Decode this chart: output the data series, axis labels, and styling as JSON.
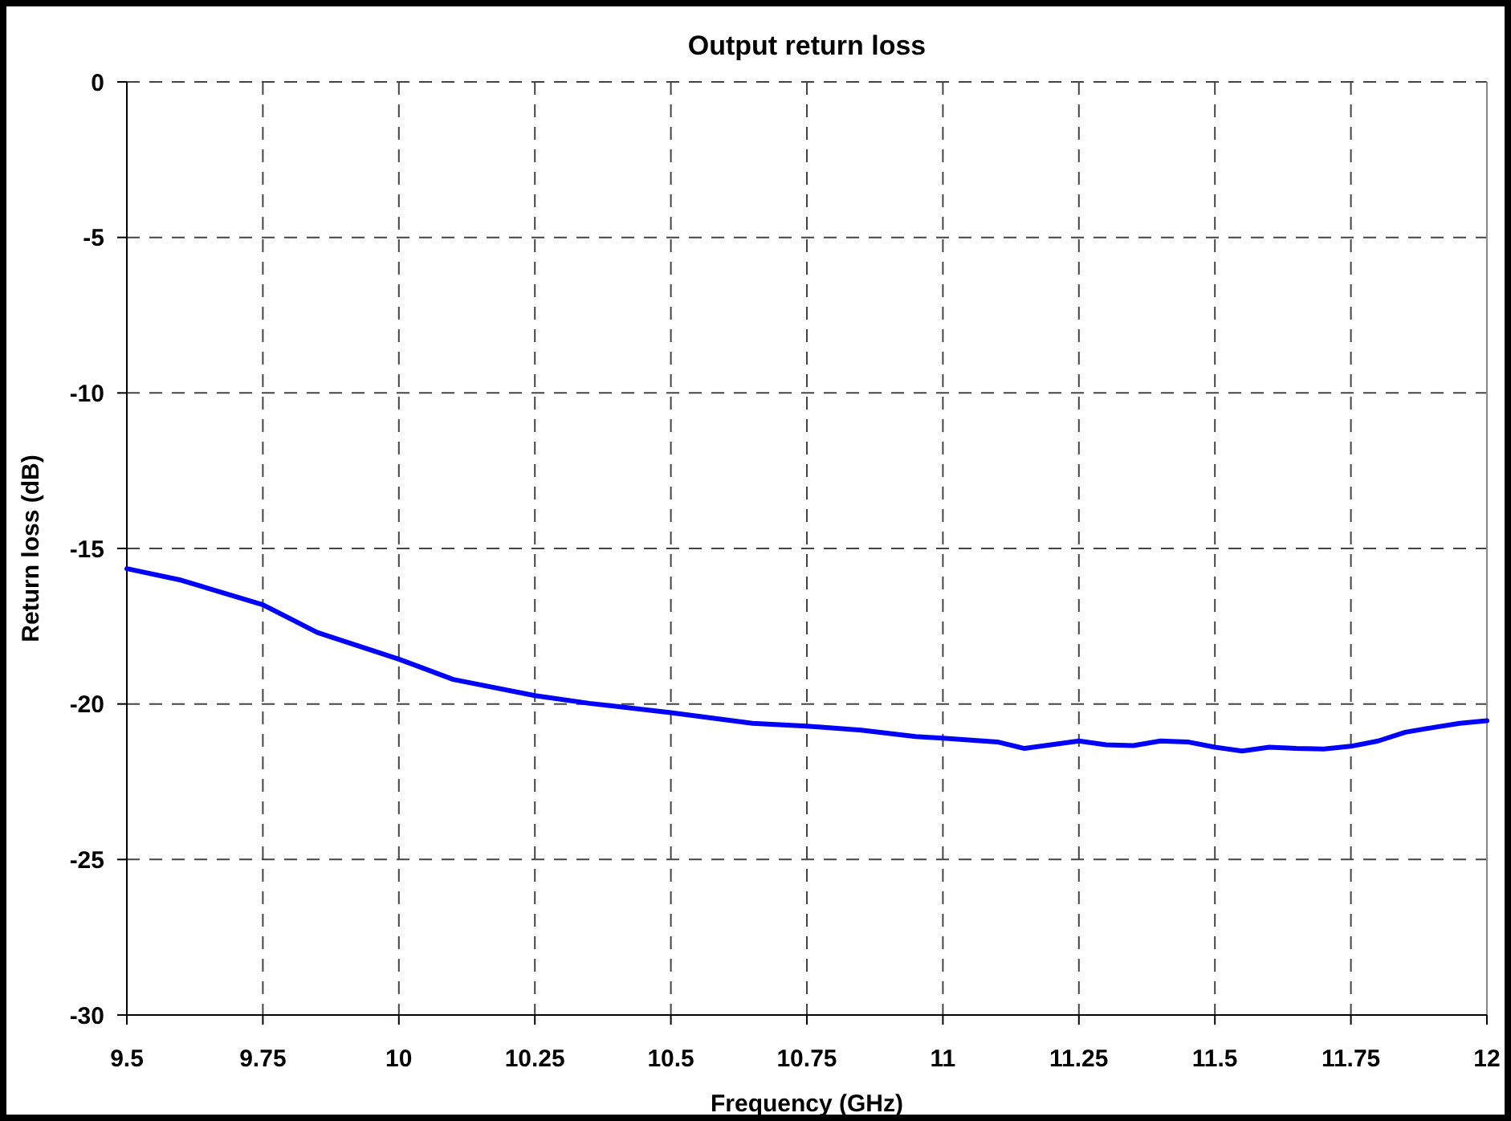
{
  "chart_data": {
    "type": "line",
    "title": "Output return loss",
    "xlabel": "Frequency (GHz)",
    "ylabel": "Return loss (dB)",
    "x": [
      9.5,
      9.6,
      9.75,
      9.85,
      10,
      10.1,
      10.25,
      10.35,
      10.5,
      10.65,
      10.75,
      10.85,
      10.95,
      11,
      11.1,
      11.15,
      11.25,
      11.3,
      11.35,
      11.4,
      11.45,
      11.5,
      11.55,
      11.6,
      11.65,
      11.7,
      11.75,
      11.8,
      11.85,
      11.9,
      11.95,
      12
    ],
    "series": [
      {
        "color": "#0000ff",
        "values": [
          -15.65,
          -16.02,
          -16.81,
          -17.7,
          -18.56,
          -19.21,
          -19.73,
          -19.98,
          -20.28,
          -20.62,
          -20.71,
          -20.84,
          -21.05,
          -21.1,
          -21.22,
          -21.43,
          -21.19,
          -21.31,
          -21.34,
          -21.19,
          -21.22,
          -21.39,
          -21.51,
          -21.39,
          -21.43,
          -21.45,
          -21.36,
          -21.19,
          -20.91,
          -20.76,
          -20.62,
          -20.54
        ]
      }
    ],
    "xlim": [
      9.5,
      12
    ],
    "xticks": [
      9.5,
      9.75,
      10,
      10.25,
      10.5,
      10.75,
      11,
      11.25,
      11.5,
      11.75,
      12
    ],
    "ylim": [
      -30,
      0
    ],
    "yticks": [
      -30,
      -25,
      -20,
      -15,
      -10,
      -5,
      0
    ],
    "grid": true,
    "marker": "none",
    "line_style": "solid"
  }
}
